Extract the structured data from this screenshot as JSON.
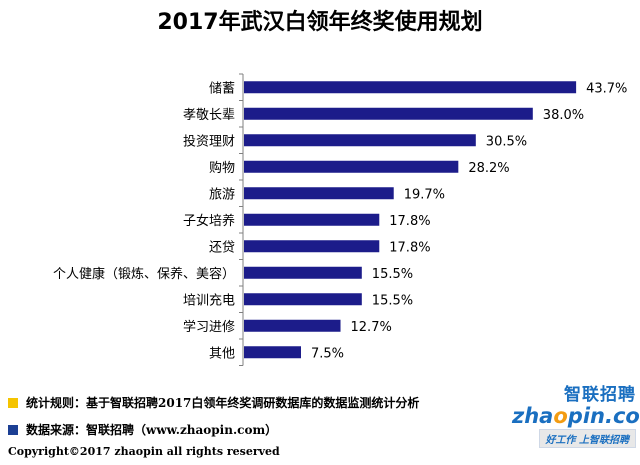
{
  "colors": {
    "bar": "#1c1c8a",
    "axis": "#808080",
    "accent_yellow": "#f5c400",
    "accent_blue": "#1c3f94"
  },
  "chart_data": {
    "type": "bar",
    "orientation": "horizontal",
    "title": "2017年武汉白领年终奖使用规划",
    "categories": [
      "储蓄",
      "孝敬长辈",
      "投资理财",
      "购物",
      "旅游",
      "子女培养",
      "还贷",
      "个人健康（锻炼、保养、美容）",
      "培训充电",
      "学习进修",
      "其他"
    ],
    "values": [
      43.7,
      38.0,
      30.5,
      28.2,
      19.7,
      17.8,
      17.8,
      15.5,
      15.5,
      12.7,
      7.5
    ],
    "value_labels": [
      "43.7%",
      "38.0%",
      "30.5%",
      "28.2%",
      "19.7%",
      "17.8%",
      "17.8%",
      "15.5%",
      "15.5%",
      "12.7%",
      "7.5%"
    ],
    "xlim": [
      0,
      50
    ],
    "grid": false,
    "legend": "none"
  },
  "footer": {
    "rules": "统计规则：基于智联招聘2017白领年终奖调研数据库的数据监测统计分析",
    "source": "数据来源：智联招聘（www.zhaopin.com）",
    "copyright": "Copyright©2017 zhaopin all rights reserved"
  },
  "logo": {
    "cn": "智联招聘",
    "en_a": "zha",
    "en_o": "o",
    "en_b": "pin.com",
    "slogan": "好工作 上智联招聘"
  }
}
